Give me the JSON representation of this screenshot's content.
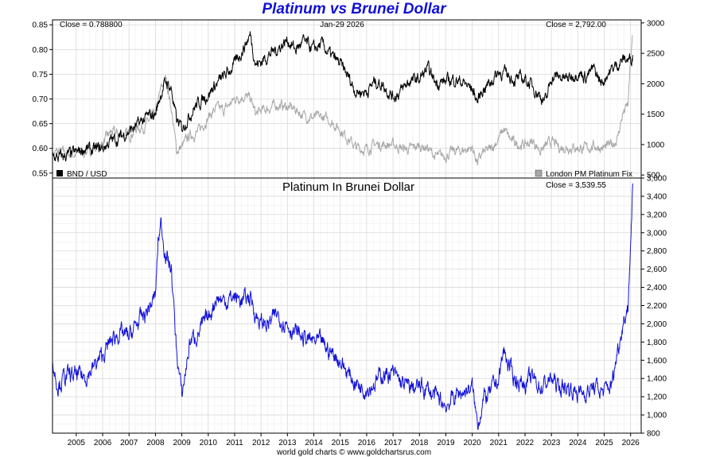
{
  "title": "Platinum vs Brunei Dollar",
  "footer": "world gold charts © www.goldchartsrus.com",
  "colors": {
    "bnd_line": "#000000",
    "platinum_usd_line": "#a8a8a8",
    "platinum_bnd_line": "#1212d8",
    "title": "#1010d8",
    "grid": "#d8d8d8",
    "grid_minor": "#eaeaea"
  },
  "chart_data": [
    {
      "type": "line",
      "close_left": "Close = 0.788800",
      "date": "Jan-29  2026",
      "close_right": "Close = 2,792.00",
      "legend_left": "BND / USD",
      "legend_right": "London PM Platinum Fix",
      "legend_placement": "bottom",
      "ylim_left": [
        0.54,
        0.86
      ],
      "ylim_right": [
        450,
        3050
      ],
      "yticks_left": [
        "0.55",
        "0.60",
        "0.65",
        "0.70",
        "0.75",
        "0.80",
        "0.85"
      ],
      "yticks_right": [
        "500",
        "1000",
        "1500",
        "2000",
        "2500",
        "3000"
      ],
      "grid": true,
      "series": [
        {
          "name": "BND / USD",
          "axis": "left",
          "x": [
            2004.1,
            2004.3,
            2004.6,
            2005.0,
            2005.3,
            2005.6,
            2006.0,
            2006.3,
            2006.6,
            2007.0,
            2007.3,
            2007.6,
            2008.0,
            2008.2,
            2008.4,
            2008.6,
            2008.8,
            2009.0,
            2009.2,
            2009.5,
            2010.0,
            2010.3,
            2010.6,
            2011.0,
            2011.3,
            2011.6,
            2011.8,
            2012.0,
            2012.3,
            2012.6,
            2013.0,
            2013.3,
            2013.6,
            2014.0,
            2014.3,
            2014.6,
            2015.0,
            2015.3,
            2015.6,
            2016.0,
            2016.3,
            2016.6,
            2017.0,
            2017.3,
            2017.6,
            2018.0,
            2018.3,
            2018.6,
            2019.0,
            2019.3,
            2019.6,
            2020.0,
            2020.2,
            2020.4,
            2020.7,
            2021.0,
            2021.3,
            2021.6,
            2022.0,
            2022.3,
            2022.6,
            2022.8,
            2023.0,
            2023.3,
            2023.6,
            2024.0,
            2024.3,
            2024.6,
            2024.9,
            2025.1,
            2025.4,
            2025.7,
            2026.0,
            2026.08
          ],
          "y": [
            0.585,
            0.58,
            0.585,
            0.59,
            0.6,
            0.595,
            0.6,
            0.615,
            0.62,
            0.635,
            0.645,
            0.66,
            0.67,
            0.71,
            0.735,
            0.72,
            0.655,
            0.64,
            0.66,
            0.685,
            0.71,
            0.73,
            0.745,
            0.77,
            0.8,
            0.83,
            0.77,
            0.775,
            0.79,
            0.8,
            0.82,
            0.8,
            0.815,
            0.8,
            0.81,
            0.79,
            0.77,
            0.745,
            0.715,
            0.715,
            0.735,
            0.73,
            0.705,
            0.715,
            0.735,
            0.74,
            0.76,
            0.735,
            0.735,
            0.74,
            0.735,
            0.72,
            0.695,
            0.72,
            0.735,
            0.755,
            0.75,
            0.74,
            0.74,
            0.725,
            0.705,
            0.695,
            0.745,
            0.745,
            0.74,
            0.755,
            0.745,
            0.76,
            0.73,
            0.75,
            0.765,
            0.78,
            0.78,
            0.7888
          ]
        },
        {
          "name": "London PM Platinum Fix",
          "axis": "right",
          "x": [
            2004.1,
            2004.4,
            2004.8,
            2005.2,
            2005.6,
            2006.0,
            2006.3,
            2006.6,
            2007.0,
            2007.3,
            2007.6,
            2008.0,
            2008.2,
            2008.4,
            2008.6,
            2008.8,
            2009.0,
            2009.3,
            2009.6,
            2010.0,
            2010.3,
            2010.6,
            2011.0,
            2011.3,
            2011.6,
            2011.8,
            2012.0,
            2012.3,
            2012.6,
            2013.0,
            2013.3,
            2013.6,
            2014.0,
            2014.3,
            2014.6,
            2015.0,
            2015.3,
            2015.6,
            2016.0,
            2016.3,
            2016.6,
            2017.0,
            2017.3,
            2017.6,
            2018.0,
            2018.3,
            2018.6,
            2019.0,
            2019.3,
            2019.6,
            2020.0,
            2020.2,
            2020.4,
            2020.7,
            2021.0,
            2021.2,
            2021.5,
            2021.8,
            2022.0,
            2022.3,
            2022.6,
            2023.0,
            2023.3,
            2023.6,
            2024.0,
            2024.3,
            2024.6,
            2025.0,
            2025.3,
            2025.5,
            2025.7,
            2025.9,
            2026.0,
            2026.08
          ],
          "y": [
            860,
            880,
            830,
            860,
            930,
            1020,
            1200,
            1180,
            1150,
            1270,
            1300,
            1500,
            1900,
            2100,
            1600,
            900,
            960,
            1150,
            1200,
            1450,
            1600,
            1560,
            1750,
            1800,
            1750,
            1500,
            1550,
            1600,
            1650,
            1620,
            1580,
            1480,
            1440,
            1450,
            1400,
            1250,
            1100,
            950,
            920,
            1000,
            1000,
            1000,
            940,
            920,
            980,
            950,
            800,
            820,
            890,
            900,
            950,
            700,
            860,
            920,
            1100,
            1250,
            1050,
            1000,
            1000,
            1050,
            900,
            1050,
            950,
            960,
            950,
            930,
            980,
            940,
            1000,
            1100,
            1500,
            1650,
            2400,
            2792
          ]
        }
      ]
    },
    {
      "type": "line",
      "title": "Platinum In Brunei Dollar",
      "close_label": "Close = 3,539.55",
      "ylim": [
        800,
        3600
      ],
      "yticks": [
        "800",
        "1,000",
        "1,200",
        "1,400",
        "1,600",
        "1,800",
        "2,000",
        "2,200",
        "2,400",
        "2,600",
        "2,800",
        "3,000",
        "3,200",
        "3,400",
        "3,600"
      ],
      "grid": true,
      "series": [
        {
          "axis": "right",
          "x": [
            2004.1,
            2004.3,
            2004.6,
            2005.0,
            2005.3,
            2005.6,
            2006.0,
            2006.3,
            2006.6,
            2007.0,
            2007.3,
            2007.6,
            2008.0,
            2008.1,
            2008.2,
            2008.4,
            2008.6,
            2008.8,
            2009.0,
            2009.3,
            2009.6,
            2010.0,
            2010.3,
            2010.6,
            2011.0,
            2011.3,
            2011.6,
            2011.8,
            2012.0,
            2012.3,
            2012.6,
            2013.0,
            2013.3,
            2013.6,
            2014.0,
            2014.3,
            2014.6,
            2015.0,
            2015.3,
            2015.6,
            2016.0,
            2016.3,
            2016.6,
            2017.0,
            2017.3,
            2017.6,
            2018.0,
            2018.3,
            2018.6,
            2019.0,
            2019.3,
            2019.6,
            2020.0,
            2020.2,
            2020.4,
            2020.7,
            2021.0,
            2021.2,
            2021.5,
            2021.8,
            2022.0,
            2022.3,
            2022.6,
            2023.0,
            2023.3,
            2023.6,
            2024.0,
            2024.3,
            2024.6,
            2025.0,
            2025.3,
            2025.5,
            2025.7,
            2025.9,
            2026.0,
            2026.08
          ],
          "y": [
            1550,
            1340,
            1420,
            1430,
            1420,
            1500,
            1650,
            1800,
            1900,
            1850,
            2000,
            2100,
            2300,
            2900,
            3100,
            2750,
            2600,
            1700,
            1200,
            1800,
            1900,
            2050,
            2300,
            2250,
            2300,
            2250,
            2300,
            2100,
            2000,
            2000,
            2100,
            2000,
            1900,
            1850,
            1800,
            1780,
            1700,
            1600,
            1450,
            1350,
            1300,
            1350,
            1450,
            1450,
            1350,
            1300,
            1300,
            1280,
            1200,
            1100,
            1200,
            1250,
            1300,
            900,
            1150,
            1250,
            1400,
            1700,
            1450,
            1350,
            1350,
            1400,
            1300,
            1400,
            1300,
            1300,
            1250,
            1250,
            1300,
            1250,
            1350,
            1700,
            2000,
            2200,
            2900,
            3539.55
          ]
        }
      ]
    }
  ],
  "x_axis": {
    "ticks": [
      "2005",
      "2006",
      "2007",
      "2008",
      "2009",
      "2010",
      "2011",
      "2012",
      "2013",
      "2014",
      "2015",
      "2016",
      "2017",
      "2018",
      "2019",
      "2020",
      "2021",
      "2022",
      "2023",
      "2024",
      "2025",
      "2026"
    ],
    "xlim": [
      2004.1,
      2026.4
    ]
  }
}
